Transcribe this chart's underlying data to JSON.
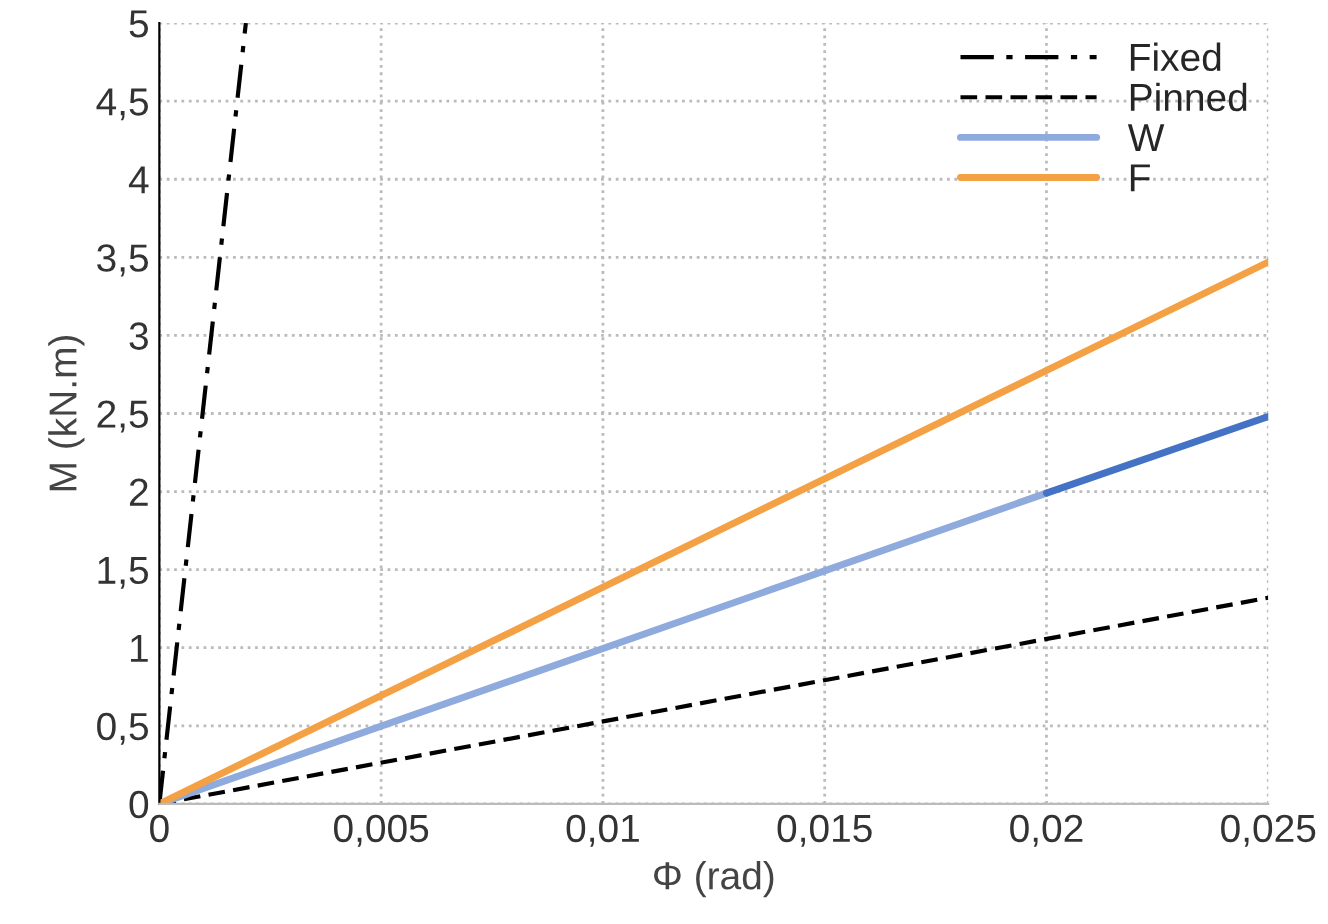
{
  "chart_data": {
    "type": "line",
    "xlabel": "Φ (rad)",
    "ylabel": "M (kN.m)",
    "xlim": [
      0,
      0.025
    ],
    "ylim": [
      0,
      5
    ],
    "xticks": [
      0,
      {
        "value": 0.005,
        "label": "0,005"
      },
      {
        "value": 0.01,
        "label": "0,01"
      },
      {
        "value": 0.015,
        "label": "0,015"
      },
      {
        "value": 0.02,
        "label": "0,02"
      },
      {
        "value": 0.025,
        "label": "0,025"
      }
    ],
    "yticks": [
      0,
      {
        "value": 0.5,
        "label": "0,5"
      },
      1,
      {
        "value": 1.5,
        "label": "1,5"
      },
      2,
      {
        "value": 2.5,
        "label": "2,5"
      },
      3,
      {
        "value": 3.5,
        "label": "3,5"
      },
      4,
      {
        "value": 4.5,
        "label": "4,5"
      },
      5
    ],
    "grid": true,
    "legend": "top right",
    "marker": "none",
    "series": [
      {
        "name": "Fixed",
        "color": "#000000",
        "line_style": "dashdot",
        "x": [
          0,
          0.00195
        ],
        "values": [
          0,
          5
        ]
      },
      {
        "name": "Pinned",
        "color": "#000000",
        "line_style": "dashed",
        "x": [
          0,
          0.025
        ],
        "values": [
          0,
          1.32
        ]
      },
      {
        "name": "W",
        "color": "#8faadc",
        "line_style": "solid",
        "x": [
          0,
          0.02
        ],
        "values": [
          0,
          1.99
        ]
      },
      {
        "color": "#4472c4",
        "line_style": "solid",
        "x": [
          0.02,
          0.025
        ],
        "values": [
          1.99,
          2.48
        ]
      },
      {
        "name": "F",
        "color": "#f4a145",
        "line_style": "solid",
        "x": [
          0,
          0.025
        ],
        "values": [
          0,
          3.47
        ]
      }
    ]
  }
}
